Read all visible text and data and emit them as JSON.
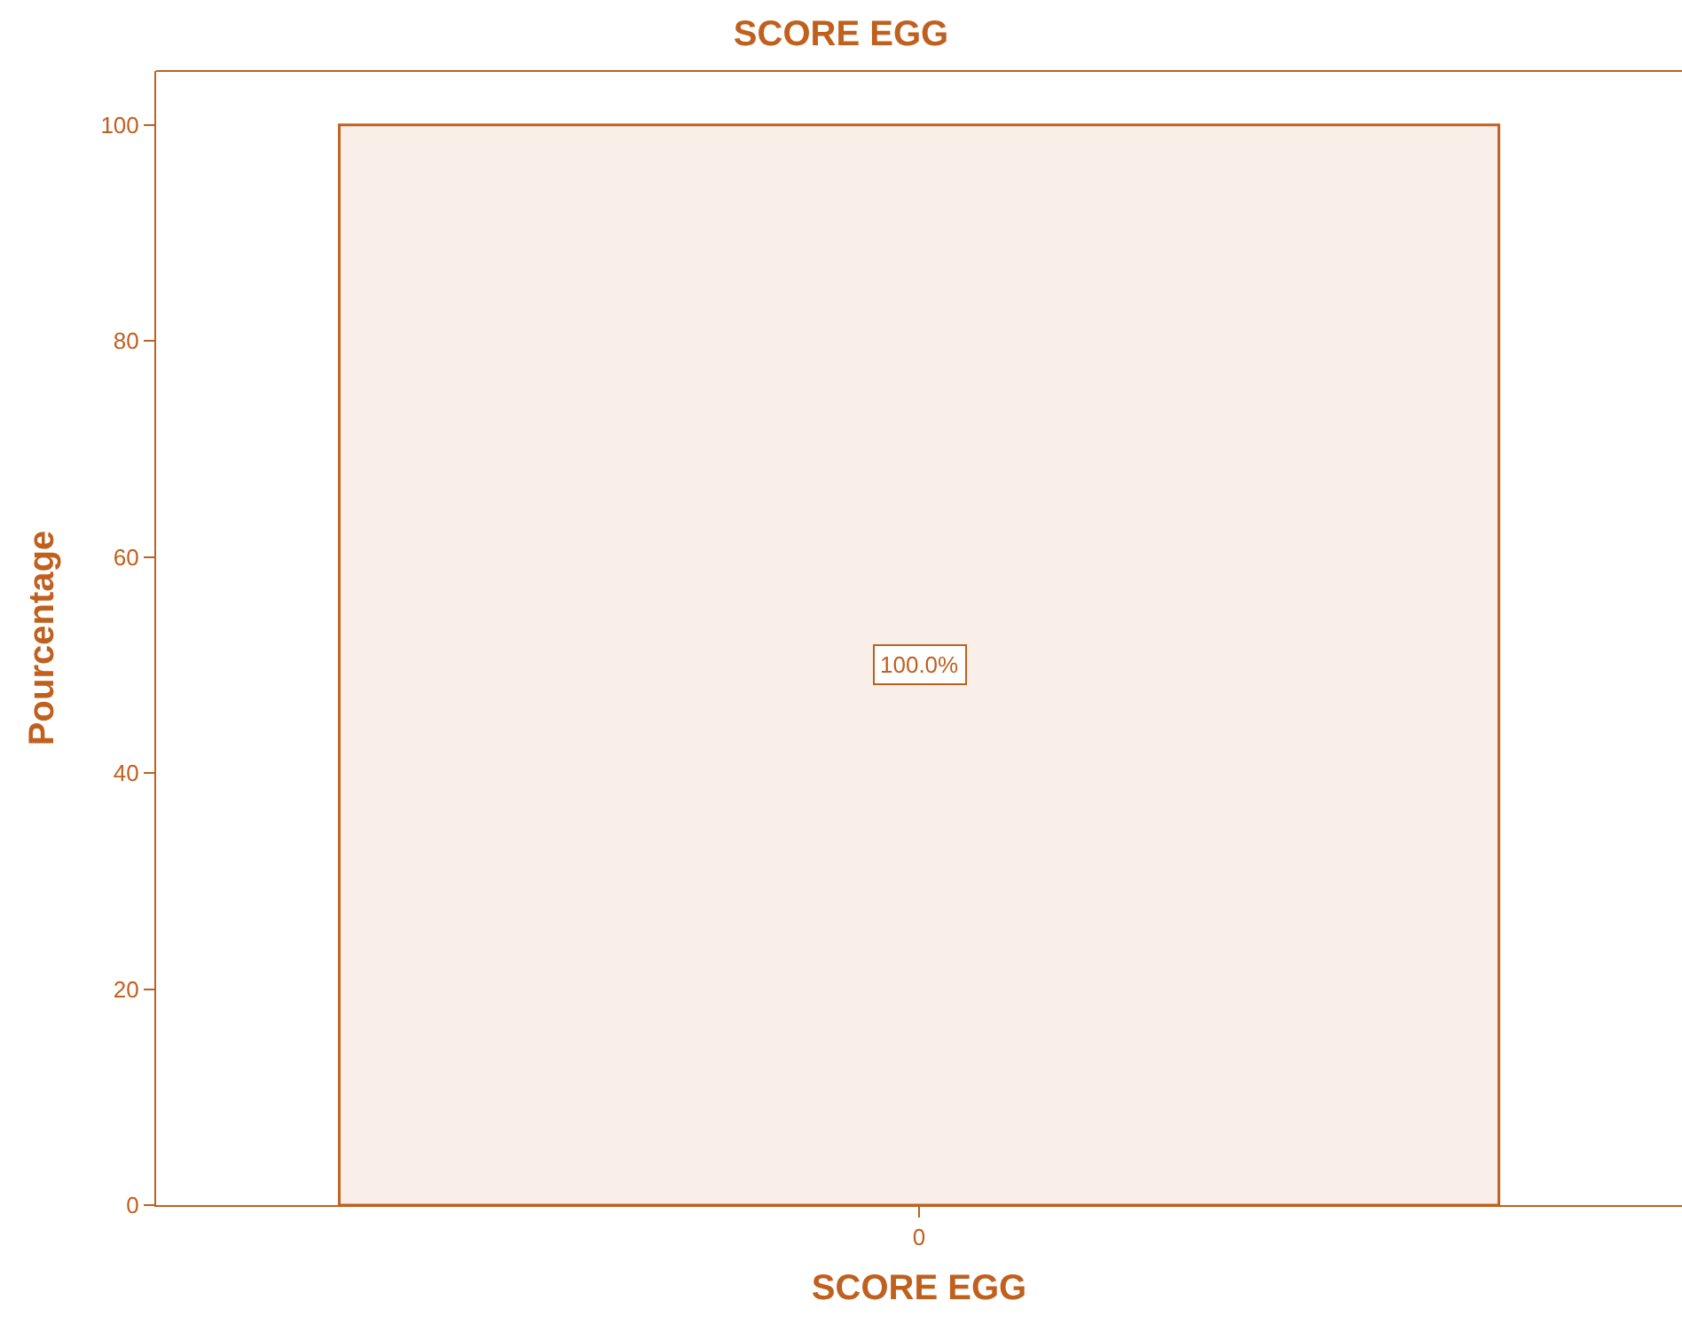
{
  "chart_data": {
    "type": "bar",
    "title": "SCORE EGG",
    "xlabel": "SCORE EGG",
    "ylabel": "Pourcentage",
    "categories": [
      "0"
    ],
    "series": [
      {
        "color": "#c0601f",
        "values": [
          100
        ],
        "value_labels": [
          "100.0%"
        ]
      }
    ],
    "ylim": [
      0,
      105
    ],
    "yticks": [
      0,
      20,
      40,
      60,
      80,
      100
    ],
    "grid": false,
    "legend": false
  }
}
